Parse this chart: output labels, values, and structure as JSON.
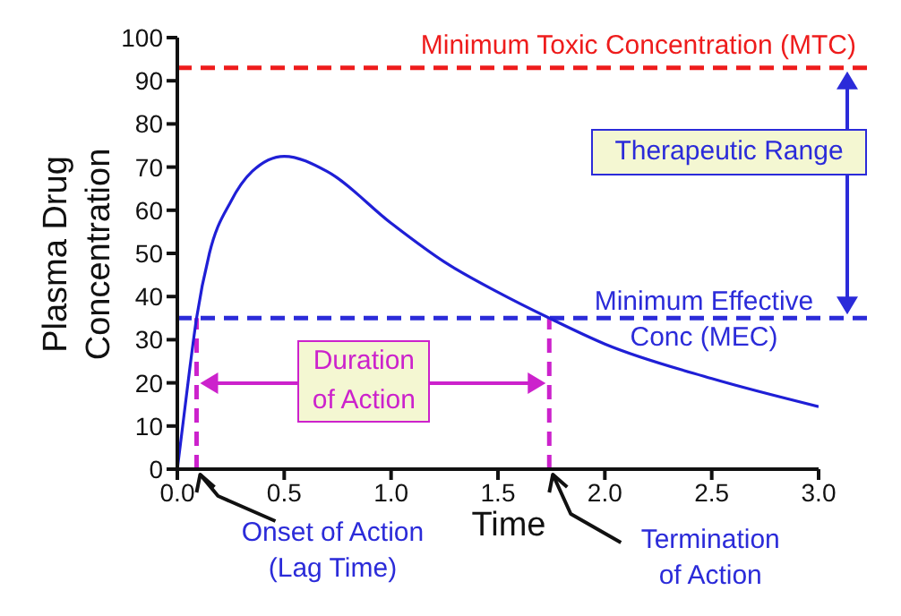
{
  "chart_data": {
    "type": "line",
    "xlabel": "Time",
    "ylabel": "Plasma Drug Concentration",
    "x": [
      0,
      0.03,
      0.06,
      0.09,
      0.15,
      0.25,
      0.35,
      0.5,
      0.7,
      1.0,
      1.25,
      1.5,
      1.74,
      2.0,
      2.5,
      3.0
    ],
    "series": [
      {
        "color": "#1f1fd6",
        "values": [
          0,
          12,
          24,
          35,
          50,
          62,
          69,
          72.5,
          69,
          57,
          48,
          41,
          35,
          29,
          21,
          14.5
        ]
      }
    ],
    "xlim": [
      0,
      3
    ],
    "ylim": [
      0,
      100
    ],
    "xticks": [
      {
        "value": 0,
        "label": "0.0"
      },
      {
        "value": 0.5,
        "label": "0.5"
      },
      {
        "value": 1,
        "label": "1.0"
      },
      {
        "value": 1.5,
        "label": "1.5"
      },
      {
        "value": 2,
        "label": "2.0"
      },
      {
        "value": 2.5,
        "label": "2.5"
      },
      {
        "value": 3,
        "label": "3.0"
      }
    ],
    "yticks": [
      0,
      10,
      20,
      30,
      40,
      50,
      60,
      70,
      80,
      90,
      100
    ],
    "ref_lines": [
      {
        "axis": "y",
        "value": 93,
        "label": "Minimum Toxic Concentration (MTC)",
        "color": "#ee1c1c",
        "line_style": "dashed"
      },
      {
        "axis": "y",
        "value": 35,
        "label": "Minimum Effective Conc (MEC)",
        "color": "#2b2bd9",
        "line_style": "dashed"
      },
      {
        "axis": "x",
        "value": 0.09,
        "color": "#cc22cc",
        "line_style": "dashed"
      },
      {
        "axis": "x",
        "value": 1.74,
        "color": "#cc22cc",
        "line_style": "dashed"
      }
    ],
    "annotations": [
      "Duration of Action",
      "Therapeutic Range",
      {
        "text": "Onset of Action (Lag Time)",
        "x": 0.09,
        "y": 0
      },
      {
        "text": "Termination of Action",
        "x": 1.74,
        "y": 0
      }
    ],
    "grid": false,
    "legend": false,
    "marker": "none",
    "line_style": "solid"
  }
}
